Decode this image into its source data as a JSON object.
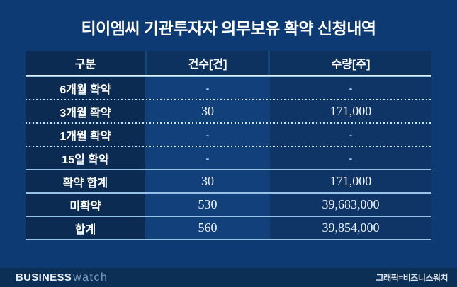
{
  "title": "티이엠씨 기관투자자 의무보유 확약 신청내역",
  "colors": {
    "page_background": "#0d3a72",
    "cell_dark": "#0b2b53",
    "cell_count_col": "#12407a",
    "cell_qty_col": "#0e3566",
    "separator_solid": "#96c2e8",
    "header_underline": "#bfe0f5",
    "footer_band": "#0c2f55",
    "text": "#ffffff"
  },
  "table": {
    "headers": [
      "구분",
      "건수[건]",
      "수량[주]"
    ],
    "rows": [
      {
        "label": "6개월 확약",
        "count": "-",
        "quantity": "-"
      },
      {
        "label": "3개월 확약",
        "count": "30",
        "quantity": "171,000"
      },
      {
        "label": "1개월 확약",
        "count": "-",
        "quantity": "-"
      },
      {
        "label": "15일 확약",
        "count": "-",
        "quantity": "-"
      },
      {
        "label": "확약 합계",
        "count": "30",
        "quantity": "171,000"
      },
      {
        "label": "미확약",
        "count": "530",
        "quantity": "39,683,000"
      },
      {
        "label": "합계",
        "count": "560",
        "quantity": "39,854,000"
      }
    ]
  },
  "chart_data": {
    "type": "table",
    "title": "티이엠씨 기관투자자 의무보유 확약 신청내역",
    "columns": [
      "구분",
      "건수[건]",
      "수량[주]"
    ],
    "rows": [
      [
        "6개월 확약",
        null,
        null
      ],
      [
        "3개월 확약",
        30,
        171000
      ],
      [
        "1개월 확약",
        null,
        null
      ],
      [
        "15일 확약",
        null,
        null
      ],
      [
        "확약 합계",
        30,
        171000
      ],
      [
        "미확약",
        530,
        39683000
      ],
      [
        "합계",
        560,
        39854000
      ]
    ]
  },
  "footer": {
    "logo_primary": "BUSINESS",
    "logo_secondary": "watch",
    "credit": "그래픽=비즈니스워치"
  }
}
